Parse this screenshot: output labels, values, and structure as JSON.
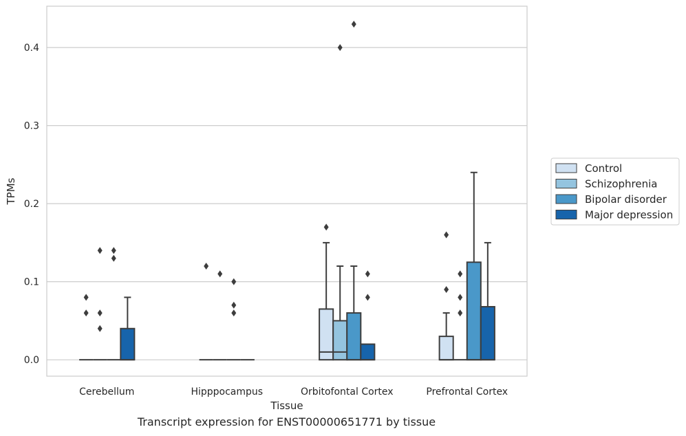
{
  "caption": "Transcript expression for ENST00000651771 by tissue",
  "chart_data": {
    "type": "box",
    "xlabel": "Tissue",
    "ylabel": "TPMs",
    "ylim": [
      -0.021,
      0.453
    ],
    "yticks": [
      0.0,
      0.1,
      0.2,
      0.3,
      0.4
    ],
    "ytick_labels": [
      "0.0",
      "0.1",
      "0.2",
      "0.3",
      "0.4"
    ],
    "grid": "horizontal",
    "legend_position": "right",
    "categories": [
      "Cerebellum",
      "Hipppocampus",
      "Orbitofontal Cortex",
      "Prefrontal Cortex"
    ],
    "series": [
      {
        "name": "Control",
        "color": "#d0e1f2",
        "boxes": [
          {
            "q1": 0,
            "median": 0,
            "q3": 0,
            "whisker_low": 0,
            "whisker_high": 0,
            "outliers": [
              0.06,
              0.08
            ]
          },
          {
            "q1": 0,
            "median": 0,
            "q3": 0,
            "whisker_low": 0,
            "whisker_high": 0,
            "outliers": [
              0.12
            ]
          },
          {
            "q1": 0,
            "median": 0.01,
            "q3": 0.065,
            "whisker_low": 0,
            "whisker_high": 0.15,
            "outliers": [
              0.17
            ]
          },
          {
            "q1": 0,
            "median": 0,
            "q3": 0.03,
            "whisker_low": 0,
            "whisker_high": 0.06,
            "outliers": [
              0.09,
              0.16
            ]
          }
        ]
      },
      {
        "name": "Schizophrenia",
        "color": "#94c4df",
        "boxes": [
          {
            "q1": 0,
            "median": 0,
            "q3": 0,
            "whisker_low": 0,
            "whisker_high": 0,
            "outliers": [
              0.04,
              0.06,
              0.14
            ]
          },
          {
            "q1": 0,
            "median": 0,
            "q3": 0,
            "whisker_low": 0,
            "whisker_high": 0,
            "outliers": [
              0.11
            ]
          },
          {
            "q1": 0,
            "median": 0.01,
            "q3": 0.05,
            "whisker_low": 0,
            "whisker_high": 0.12,
            "outliers": [
              0.4
            ]
          },
          {
            "q1": 0,
            "median": 0,
            "q3": 0,
            "whisker_low": 0,
            "whisker_high": 0,
            "outliers": [
              0.06,
              0.08,
              0.11
            ]
          }
        ]
      },
      {
        "name": "Bipolar disorder",
        "color": "#4a98c9",
        "boxes": [
          {
            "q1": 0,
            "median": 0,
            "q3": 0,
            "whisker_low": 0,
            "whisker_high": 0,
            "outliers": [
              0.13,
              0.14
            ]
          },
          {
            "q1": 0,
            "median": 0,
            "q3": 0,
            "whisker_low": 0,
            "whisker_high": 0,
            "outliers": [
              0.06,
              0.07,
              0.1
            ]
          },
          {
            "q1": 0,
            "median": 0,
            "q3": 0.06,
            "whisker_low": 0,
            "whisker_high": 0.12,
            "outliers": [
              0.43
            ]
          },
          {
            "q1": 0,
            "median": 0,
            "q3": 0.125,
            "whisker_low": 0,
            "whisker_high": 0.24,
            "outliers": []
          }
        ]
      },
      {
        "name": "Major depression",
        "color": "#1764ab",
        "boxes": [
          {
            "q1": 0,
            "median": 0,
            "q3": 0.04,
            "whisker_low": 0,
            "whisker_high": 0.08,
            "outliers": []
          },
          {
            "q1": 0,
            "median": 0,
            "q3": 0,
            "whisker_low": 0,
            "whisker_high": 0,
            "outliers": []
          },
          {
            "q1": 0,
            "median": 0,
            "q3": 0.02,
            "whisker_low": 0,
            "whisker_high": 0.02,
            "outliers": [
              0.08,
              0.11
            ]
          },
          {
            "q1": 0,
            "median": 0,
            "q3": 0.068,
            "whisker_low": 0,
            "whisker_high": 0.15,
            "outliers": []
          }
        ]
      }
    ]
  }
}
